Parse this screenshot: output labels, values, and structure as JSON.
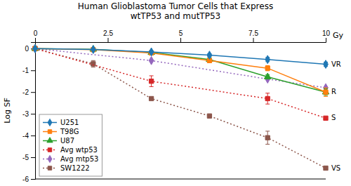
{
  "chart_data": {
    "type": "line",
    "title": "Human Glioblastoma Tumor Cells that Express\nwtTP53 and mutTP53",
    "x_label": "Gy",
    "y_label": "Log SF",
    "xlim": [
      0,
      10
    ],
    "ylim": [
      -6,
      0.3
    ],
    "xticks": [
      0,
      2.5,
      5,
      7.5,
      10
    ],
    "yticks": [
      0,
      -1,
      -2,
      -3,
      -4,
      -5,
      -6
    ],
    "grid": false,
    "legend": "lower left",
    "series": [
      {
        "name": "U251",
        "marker": "diamond",
        "line_style": "solid",
        "x": [
          0,
          2,
          4,
          6,
          8,
          10
        ],
        "values": [
          0,
          -0.04,
          -0.15,
          -0.3,
          -0.5,
          -0.72
        ],
        "yerr": [
          0,
          0.0,
          0.05,
          0.07,
          0.1,
          0.1
        ]
      },
      {
        "name": "T98G",
        "marker": "square",
        "line_style": "solid",
        "x": [
          0,
          2,
          4,
          6,
          8,
          10
        ],
        "values": [
          0,
          -0.05,
          -0.2,
          -0.55,
          -0.9,
          -2.0
        ],
        "yerr": [
          0,
          0.0,
          0.07,
          0.1,
          0.12,
          0.2
        ]
      },
      {
        "name": "U87",
        "marker": "triangle",
        "line_style": "solid",
        "x": [
          0,
          2,
          4,
          6,
          8,
          10
        ],
        "values": [
          0,
          -0.03,
          -0.18,
          -0.5,
          -1.3,
          -2.0
        ],
        "yerr": [
          0,
          0.0,
          0.05,
          0.08,
          0.1,
          0.15
        ]
      },
      {
        "name": "Avg wtp53",
        "marker": "square",
        "line_style": "dotted",
        "x": [
          0,
          4,
          8,
          10
        ],
        "values": [
          0,
          -1.5,
          -2.3,
          -3.2
        ],
        "yerr": [
          0,
          0.25,
          0.25,
          0.0
        ]
      },
      {
        "name": "Avg mtp53",
        "marker": "diamond",
        "line_style": "dotted",
        "x": [
          0,
          4,
          8,
          10
        ],
        "values": [
          0,
          -0.55,
          -1.4,
          -1.8
        ],
        "yerr": [
          0,
          0.0,
          0.0,
          0.0
        ]
      },
      {
        "name": "SW1222",
        "marker": "square",
        "line_style": "dotted",
        "x": [
          0,
          2,
          4,
          6,
          8,
          10
        ],
        "values": [
          0,
          -0.7,
          -2.3,
          -3.1,
          -4.1,
          -5.5
        ],
        "yerr": [
          0,
          0.15,
          0.0,
          0.0,
          0.3,
          0.0
        ]
      }
    ],
    "annotations": [
      {
        "text": "VR",
        "y": -0.72
      },
      {
        "text": "R",
        "y": -2.0
      },
      {
        "text": "S",
        "y": -3.2
      },
      {
        "text": "VS",
        "y": -5.5
      }
    ]
  }
}
